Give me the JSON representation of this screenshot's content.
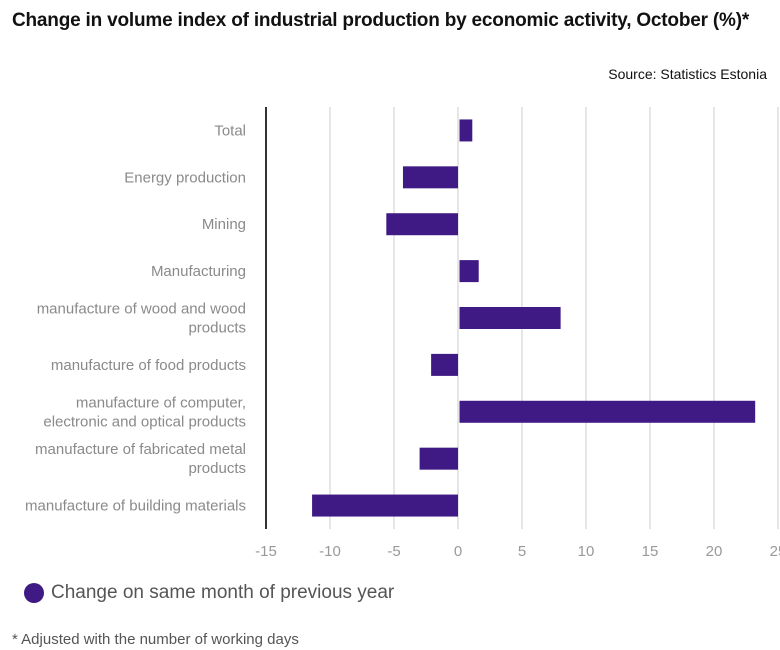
{
  "header": {
    "title": "Change in volume index of industrial production by economic activity, October (%)*",
    "source": "Source: Statistics Estonia"
  },
  "legend": {
    "label": "Change on same month of previous year"
  },
  "footnote": "* Adjusted with the number of working days",
  "colors": {
    "bar": "#3f1a85",
    "grid": "#dddddd",
    "axis": "#333333",
    "tick_label": "#999999",
    "category_label": "#8a8a8a"
  },
  "chart_data": {
    "type": "bar",
    "orientation": "horizontal",
    "title": "Change in volume index of industrial production by economic activity, October (%)*",
    "xlabel": "",
    "ylabel": "",
    "xlim": [
      -15,
      25
    ],
    "xticks": [
      -15,
      -10,
      -5,
      0,
      5,
      10,
      15,
      20,
      25
    ],
    "grid": true,
    "legend_position": "bottom-left",
    "categories": [
      [
        "Total"
      ],
      [
        "Energy production"
      ],
      [
        "Mining"
      ],
      [
        "Manufacturing"
      ],
      [
        "manufacture of wood and wood",
        "products"
      ],
      [
        "manufacture of food products"
      ],
      [
        "manufacture of computer,",
        "electronic and optical products"
      ],
      [
        "manufacture of fabricated metal",
        "products"
      ],
      [
        "manufacture of building materials"
      ]
    ],
    "series": [
      {
        "name": "Change on same month of previous year",
        "values": [
          1.0,
          -4.3,
          -5.6,
          1.5,
          7.9,
          -2.1,
          23.1,
          -3.0,
          -11.4
        ]
      }
    ]
  }
}
